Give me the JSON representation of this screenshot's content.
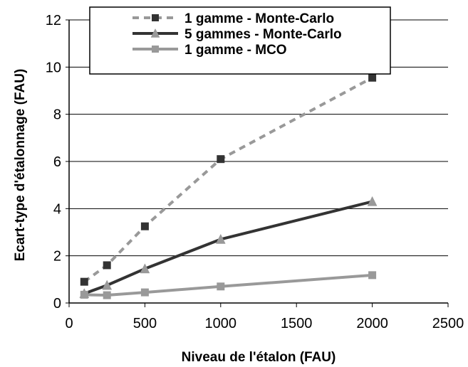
{
  "chart_data": {
    "type": "line",
    "xlabel": "Niveau de l'étalon (FAU)",
    "ylabel": "Ecart-type d'étalonnage (FAU)",
    "xlim": [
      0,
      2500
    ],
    "ylim": [
      0,
      12
    ],
    "x_ticks": [
      "0",
      "500",
      "1000",
      "1500",
      "2000",
      "2500"
    ],
    "y_ticks": [
      "0",
      "2",
      "4",
      "6",
      "8",
      "10",
      "12"
    ],
    "grid": "horizontal",
    "legend_position": "top-right",
    "series": [
      {
        "name": "1 gamme - Monte-Carlo",
        "color": "#999999",
        "line_style": "dashed",
        "marker": "square",
        "marker_color": "#333333",
        "points": [
          [
            100,
            0.9
          ],
          [
            250,
            1.6
          ],
          [
            500,
            3.25
          ],
          [
            1000,
            6.1
          ],
          [
            2000,
            9.55
          ]
        ]
      },
      {
        "name": "5 gammes - Monte-Carlo",
        "color": "#333333",
        "line_style": "solid",
        "marker": "triangle",
        "marker_color": "#999999",
        "points": [
          [
            100,
            0.4
          ],
          [
            250,
            0.75
          ],
          [
            500,
            1.45
          ],
          [
            1000,
            2.7
          ],
          [
            2000,
            4.3
          ]
        ]
      },
      {
        "name": "1 gamme - MCO",
        "color": "#999999",
        "line_style": "solid",
        "marker": "square",
        "marker_color": "#999999",
        "points": [
          [
            100,
            0.35
          ],
          [
            250,
            0.33
          ],
          [
            500,
            0.45
          ],
          [
            1000,
            0.7
          ],
          [
            2000,
            1.18
          ]
        ]
      }
    ]
  }
}
